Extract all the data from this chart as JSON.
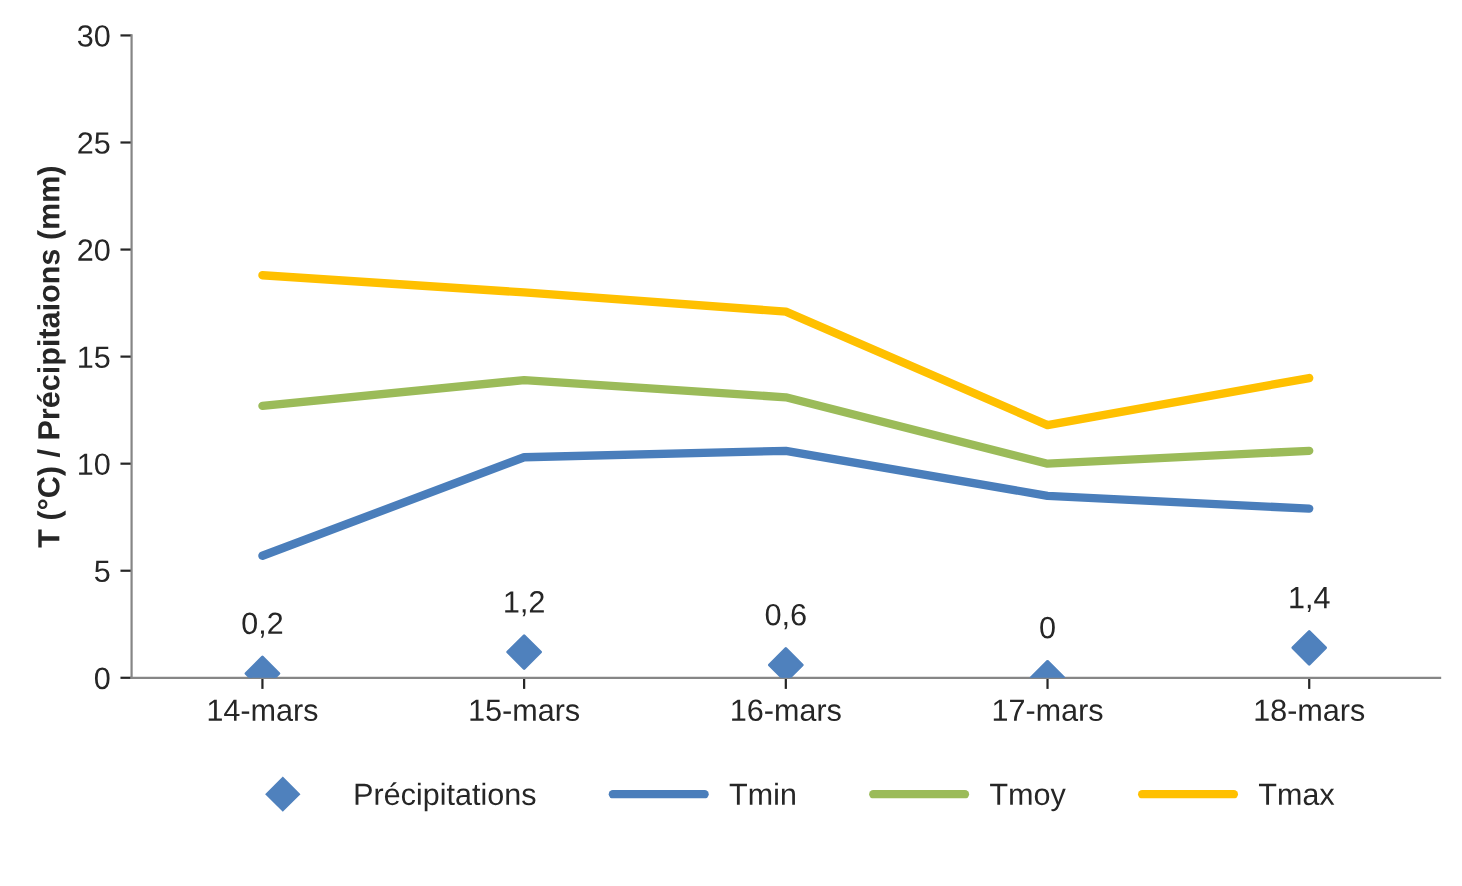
{
  "chart_data": {
    "type": "line",
    "ylabel": "T (°C) / Précipitaions (mm)",
    "categories": [
      "14-mars",
      "15-mars",
      "16-mars",
      "17-mars",
      "18-mars"
    ],
    "series": [
      {
        "name": "Précipitations",
        "type": "scatter",
        "marker": "diamond",
        "color": "#4f81bd",
        "values": [
          0.2,
          1.2,
          0.6,
          0,
          1.4
        ],
        "value_labels": [
          "0,2",
          "1,2",
          "0,6",
          "0",
          "1,4"
        ]
      },
      {
        "name": "Tmin",
        "color": "#4a7ebb",
        "values": [
          5.7,
          10.3,
          10.6,
          8.5,
          7.9
        ]
      },
      {
        "name": "Tmoy",
        "color": "#9bbb59",
        "values": [
          12.7,
          13.9,
          13.1,
          10.0,
          10.6
        ]
      },
      {
        "name": "Tmax",
        "color": "#ffc000",
        "values": [
          18.8,
          18.0,
          17.1,
          11.8,
          14.0
        ]
      }
    ],
    "ylim": [
      0,
      30
    ],
    "yticks": [
      0,
      5,
      10,
      15,
      20,
      25,
      30
    ],
    "grid": false,
    "legend": "bottom"
  }
}
